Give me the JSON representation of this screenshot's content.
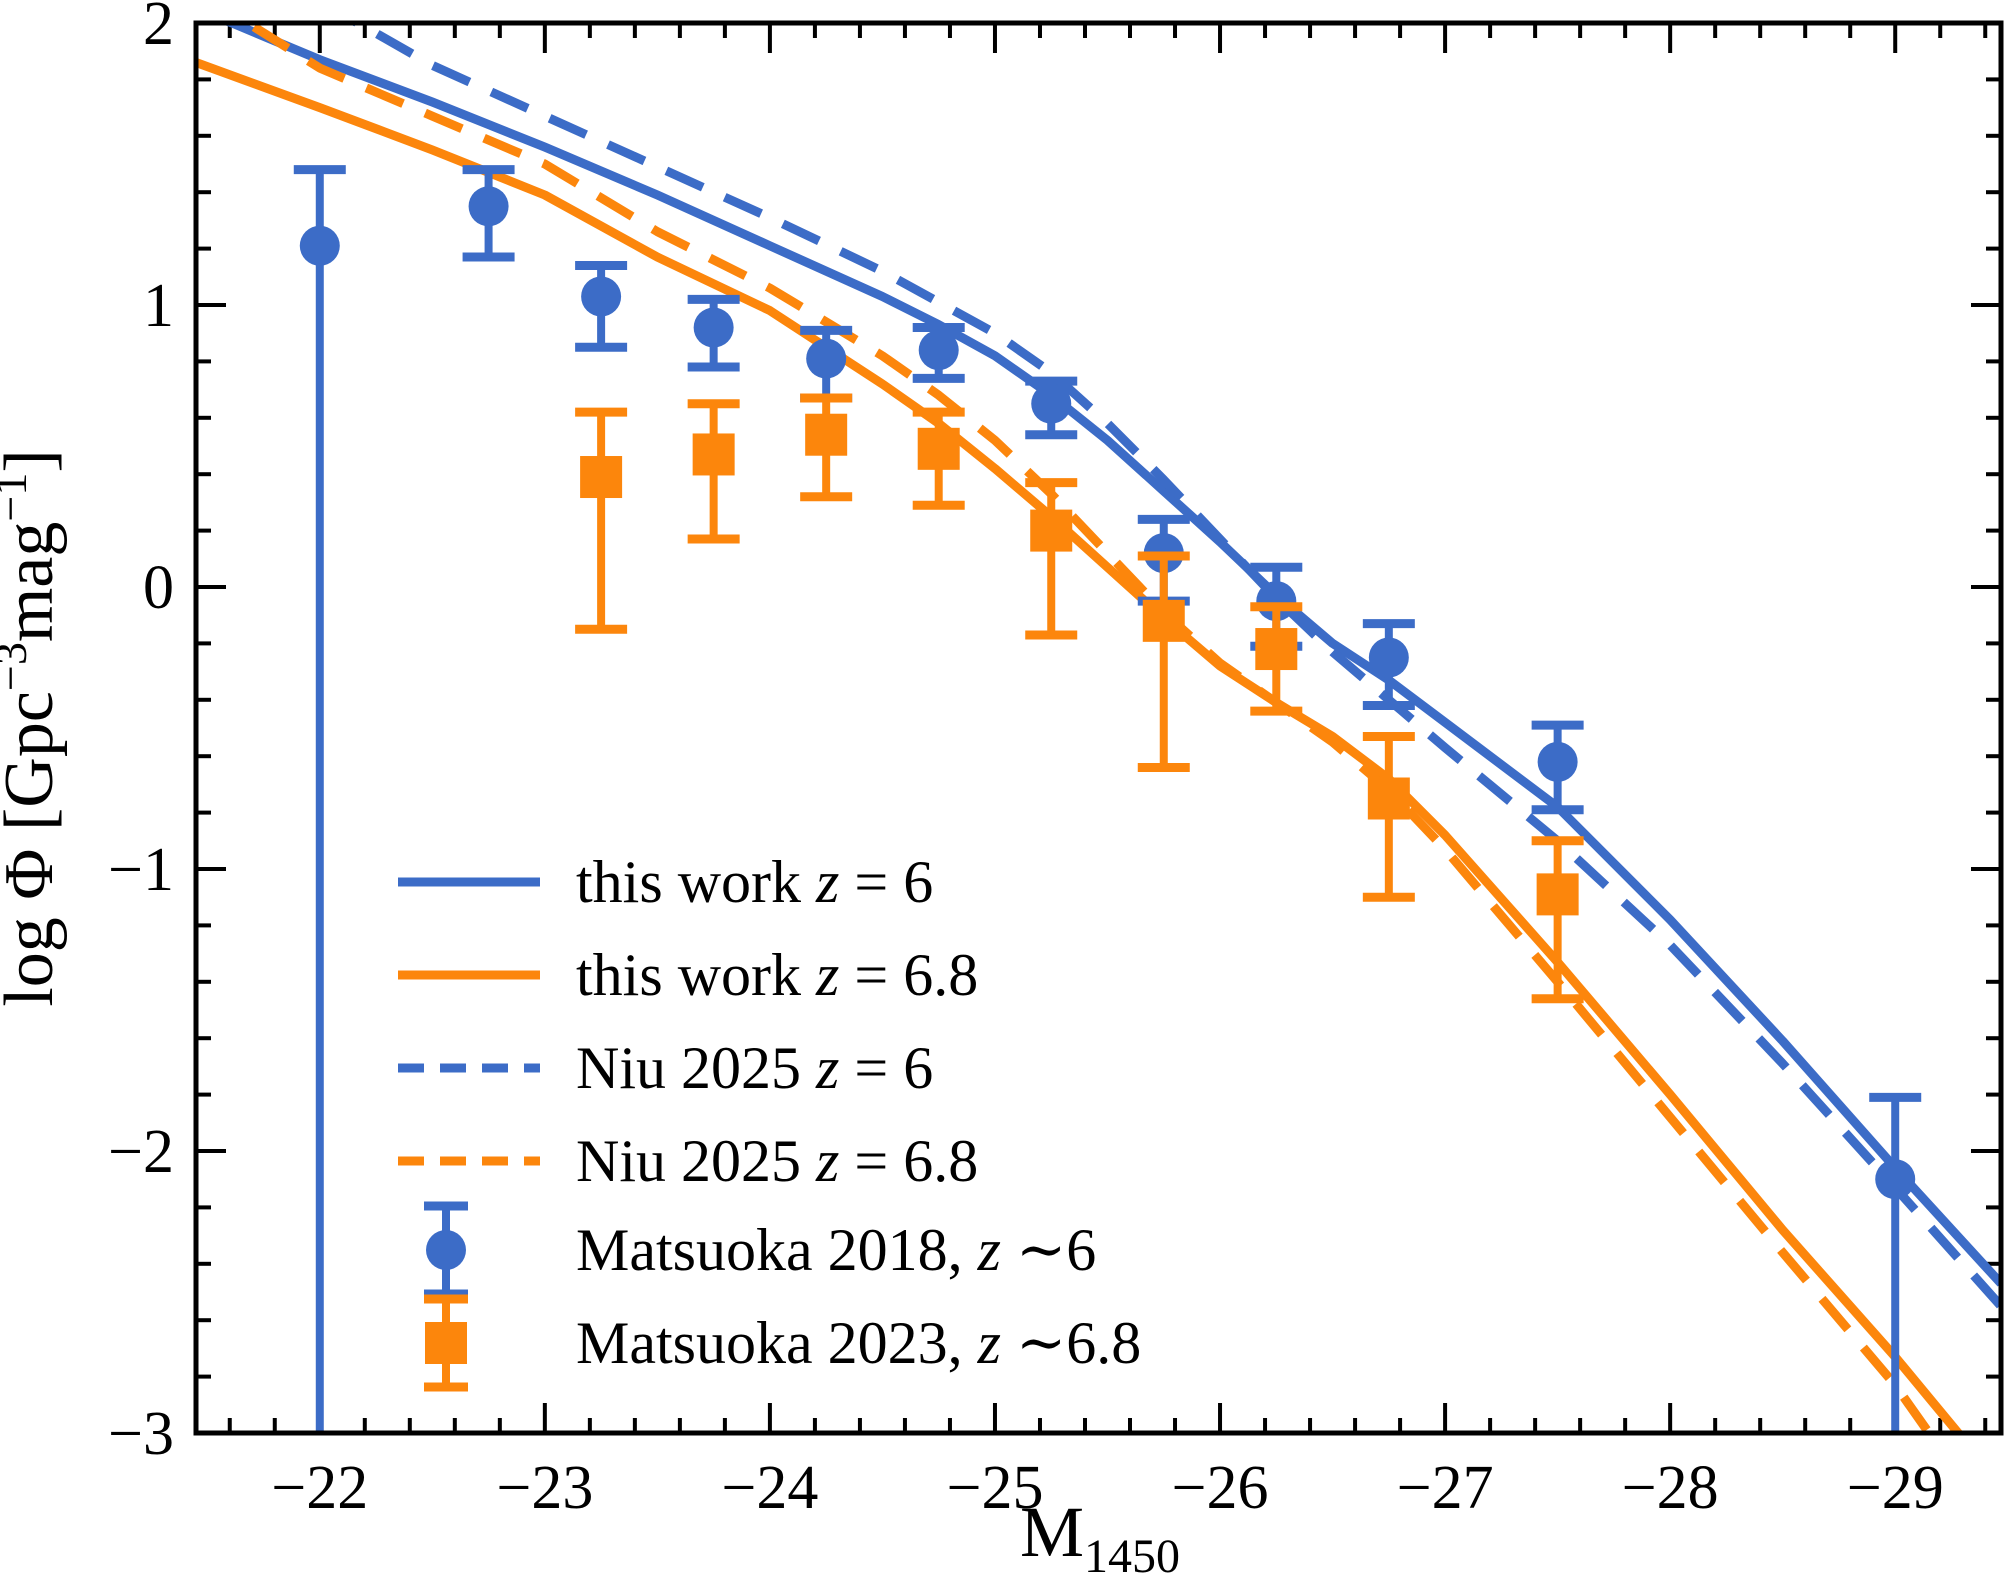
{
  "figure": {
    "background": "#ffffff",
    "description": "Quasar UV luminosity function: log Phi vs M1450 at z=6 and z=6.8"
  },
  "chart_data": {
    "type": "line+scatter",
    "title": "",
    "xlabel_parts": [
      {
        "t": "M"
      },
      {
        "t": "1450",
        "sub": true
      }
    ],
    "ylabel_parts": [
      {
        "t": "log Φ [Gpc"
      },
      {
        "t": "−3",
        "sup": true
      },
      {
        "t": "mag",
        "sup": false
      },
      {
        "t": "−1",
        "sup": true
      },
      {
        "t": "]"
      }
    ],
    "grid": false,
    "legend_position": "lower-left-inside",
    "axes": {
      "x": {
        "lim": [
          -21.45,
          -29.47
        ],
        "majors": [
          {
            "v": -22,
            "label": "−22"
          },
          {
            "v": -23,
            "label": "−23"
          },
          {
            "v": -24,
            "label": "−24"
          },
          {
            "v": -25,
            "label": "−25"
          },
          {
            "v": -26,
            "label": "−26"
          },
          {
            "v": -27,
            "label": "−27"
          },
          {
            "v": -28,
            "label": "−28"
          },
          {
            "v": -29,
            "label": "−29"
          }
        ],
        "minor_step": 0.2
      },
      "y": {
        "lim": [
          -3,
          2
        ],
        "majors": [
          {
            "v": 2,
            "label": "2"
          },
          {
            "v": 1,
            "label": "1"
          },
          {
            "v": 0,
            "label": "0"
          },
          {
            "v": -1,
            "label": "−1"
          },
          {
            "v": -2,
            "label": "−2"
          },
          {
            "v": -3,
            "label": "−3"
          }
        ],
        "minor_step": 0.2
      }
    },
    "colors": {
      "blue": "#3c6cc7",
      "orange": "#fc860c",
      "axis": "#000000"
    },
    "curves": [
      {
        "id": "this-work-z6",
        "name": "this work z = 6",
        "color": "blue",
        "dashed": false,
        "samples": [
          [
            -21.45,
            2.05
          ],
          [
            -21.61,
            2.0
          ],
          [
            -22,
            1.87
          ],
          [
            -22.5,
            1.72
          ],
          [
            -23,
            1.56
          ],
          [
            -23.5,
            1.39
          ],
          [
            -24,
            1.21
          ],
          [
            -24.5,
            1.03
          ],
          [
            -24.75,
            0.93
          ],
          [
            -25,
            0.82
          ],
          [
            -25.25,
            0.68
          ],
          [
            -25.5,
            0.52
          ],
          [
            -25.75,
            0.34
          ],
          [
            -26,
            0.16
          ],
          [
            -26.25,
            -0.03
          ],
          [
            -26.5,
            -0.2
          ],
          [
            -26.75,
            -0.33
          ],
          [
            -27,
            -0.48
          ],
          [
            -27.5,
            -0.78
          ],
          [
            -28,
            -1.18
          ],
          [
            -28.5,
            -1.61
          ],
          [
            -29,
            -2.06
          ],
          [
            -29.47,
            -2.47
          ]
        ]
      },
      {
        "id": "this-work-z68",
        "name": "this work z = 6.8",
        "color": "orange",
        "dashed": false,
        "samples": [
          [
            -21.45,
            1.86
          ],
          [
            -22,
            1.7
          ],
          [
            -22.5,
            1.55
          ],
          [
            -23,
            1.39
          ],
          [
            -23.5,
            1.17
          ],
          [
            -24,
            0.98
          ],
          [
            -24.5,
            0.72
          ],
          [
            -24.75,
            0.58
          ],
          [
            -25,
            0.42
          ],
          [
            -25.25,
            0.25
          ],
          [
            -25.5,
            0.07
          ],
          [
            -25.75,
            -0.11
          ],
          [
            -26,
            -0.28
          ],
          [
            -26.25,
            -0.41
          ],
          [
            -26.5,
            -0.53
          ],
          [
            -26.75,
            -0.68
          ],
          [
            -27,
            -0.88
          ],
          [
            -27.5,
            -1.33
          ],
          [
            -28,
            -1.8
          ],
          [
            -28.5,
            -2.28
          ],
          [
            -29,
            -2.73
          ],
          [
            -29.28,
            -3.0
          ],
          [
            -29.47,
            -3.22
          ]
        ]
      },
      {
        "id": "niu-2025-z6",
        "name": "Niu 2025 z = 6",
        "color": "blue",
        "dashed": true,
        "samples": [
          [
            -22,
            2.06
          ],
          [
            -22.17,
            2.0
          ],
          [
            -22.5,
            1.85
          ],
          [
            -23,
            1.67
          ],
          [
            -23.5,
            1.49
          ],
          [
            -24,
            1.31
          ],
          [
            -24.5,
            1.12
          ],
          [
            -25,
            0.9
          ],
          [
            -25.25,
            0.76
          ],
          [
            -25.5,
            0.58
          ],
          [
            -25.75,
            0.38
          ],
          [
            -26,
            0.17
          ],
          [
            -26.25,
            -0.04
          ],
          [
            -26.5,
            -0.23
          ],
          [
            -26.75,
            -0.4
          ],
          [
            -27,
            -0.57
          ],
          [
            -27.5,
            -0.9
          ],
          [
            -28,
            -1.27
          ],
          [
            -28.5,
            -1.69
          ],
          [
            -29,
            -2.13
          ],
          [
            -29.47,
            -2.55
          ]
        ]
      },
      {
        "id": "niu-2025-z68",
        "name": "Niu 2025 z = 6.8",
        "color": "orange",
        "dashed": true,
        "samples": [
          [
            -21.45,
            2.08
          ],
          [
            -21.68,
            2.0
          ],
          [
            -22,
            1.84
          ],
          [
            -22.5,
            1.67
          ],
          [
            -23,
            1.5
          ],
          [
            -23.5,
            1.26
          ],
          [
            -24,
            1.06
          ],
          [
            -24.5,
            0.82
          ],
          [
            -24.75,
            0.68
          ],
          [
            -25,
            0.52
          ],
          [
            -25.25,
            0.33
          ],
          [
            -25.5,
            0.12
          ],
          [
            -25.75,
            -0.09
          ],
          [
            -26,
            -0.27
          ],
          [
            -26.25,
            -0.41
          ],
          [
            -26.5,
            -0.55
          ],
          [
            -26.75,
            -0.72
          ],
          [
            -27,
            -0.93
          ],
          [
            -27.5,
            -1.4
          ],
          [
            -28,
            -1.88
          ],
          [
            -28.5,
            -2.36
          ],
          [
            -29,
            -2.83
          ],
          [
            -29.15,
            -3.0
          ],
          [
            -29.47,
            -3.35
          ]
        ]
      }
    ],
    "scatter": [
      {
        "id": "matsuoka-2018-z6",
        "name": "Matsuoka 2018, z ∼6",
        "color": "blue",
        "marker": "circle",
        "points": [
          {
            "M": -22.0,
            "v": 1.21,
            "up": 0.27,
            "down": null,
            "to_axis": true
          },
          {
            "M": -22.75,
            "v": 1.35,
            "up": 0.13,
            "down": 0.18
          },
          {
            "M": -23.25,
            "v": 1.03,
            "up": 0.11,
            "down": 0.18
          },
          {
            "M": -23.75,
            "v": 0.92,
            "up": 0.1,
            "down": 0.14
          },
          {
            "M": -24.25,
            "v": 0.81,
            "up": 0.1,
            "down": 0.14
          },
          {
            "M": -24.75,
            "v": 0.84,
            "up": 0.08,
            "down": 0.1
          },
          {
            "M": -25.25,
            "v": 0.65,
            "up": 0.08,
            "down": 0.11
          },
          {
            "M": -25.75,
            "v": 0.12,
            "up": 0.12,
            "down": 0.17
          },
          {
            "M": -26.25,
            "v": -0.05,
            "up": 0.12,
            "down": 0.16
          },
          {
            "M": -26.75,
            "v": -0.25,
            "up": 0.12,
            "down": 0.17
          },
          {
            "M": -27.5,
            "v": -0.62,
            "up": 0.13,
            "down": 0.17
          },
          {
            "M": -29.0,
            "v": -2.1,
            "up": 0.29,
            "down": null,
            "to_axis": true
          }
        ]
      },
      {
        "id": "matsuoka-2023-z68",
        "name": "Matsuoka 2023, z ∼6.8",
        "color": "orange",
        "marker": "square",
        "points": [
          {
            "M": -23.25,
            "v": 0.39,
            "up": 0.23,
            "down": 0.54
          },
          {
            "M": -23.75,
            "v": 0.47,
            "up": 0.18,
            "down": 0.3
          },
          {
            "M": -24.25,
            "v": 0.54,
            "up": 0.13,
            "down": 0.22
          },
          {
            "M": -24.75,
            "v": 0.49,
            "up": 0.13,
            "down": 0.2
          },
          {
            "M": -25.25,
            "v": 0.2,
            "up": 0.17,
            "down": 0.37
          },
          {
            "M": -25.75,
            "v": -0.12,
            "up": 0.23,
            "down": 0.52
          },
          {
            "M": -26.25,
            "v": -0.22,
            "up": 0.15,
            "down": 0.22
          },
          {
            "M": -26.75,
            "v": -0.75,
            "up": 0.22,
            "down": 0.35
          },
          {
            "M": -27.5,
            "v": -1.09,
            "up": 0.19,
            "down": 0.37
          }
        ]
      }
    ],
    "legend": {
      "entries": [
        {
          "kind": "line",
          "color": "blue",
          "dashed": false,
          "label_parts": [
            {
              "t": "this work "
            },
            {
              "t": "z",
              "italic": true
            },
            {
              "t": " = 6"
            }
          ]
        },
        {
          "kind": "line",
          "color": "orange",
          "dashed": false,
          "label_parts": [
            {
              "t": "this work "
            },
            {
              "t": "z",
              "italic": true
            },
            {
              "t": " = 6.8"
            }
          ]
        },
        {
          "kind": "line",
          "color": "blue",
          "dashed": true,
          "label_parts": [
            {
              "t": "Niu 2025 "
            },
            {
              "t": "z",
              "italic": true
            },
            {
              "t": " = 6"
            }
          ]
        },
        {
          "kind": "line",
          "color": "orange",
          "dashed": true,
          "label_parts": [
            {
              "t": "Niu 2025 "
            },
            {
              "t": "z",
              "italic": true
            },
            {
              "t": " = 6.8"
            }
          ]
        },
        {
          "kind": "marker",
          "color": "blue",
          "marker": "circle",
          "label_parts": [
            {
              "t": "Matsuoka 2018, "
            },
            {
              "t": "z",
              "italic": true
            },
            {
              "t": " ∼6"
            }
          ]
        },
        {
          "kind": "marker",
          "color": "orange",
          "marker": "square",
          "label_parts": [
            {
              "t": "Matsuoka 2023, "
            },
            {
              "t": "z",
              "italic": true
            },
            {
              "t": " ∼6.8"
            }
          ]
        }
      ]
    }
  }
}
